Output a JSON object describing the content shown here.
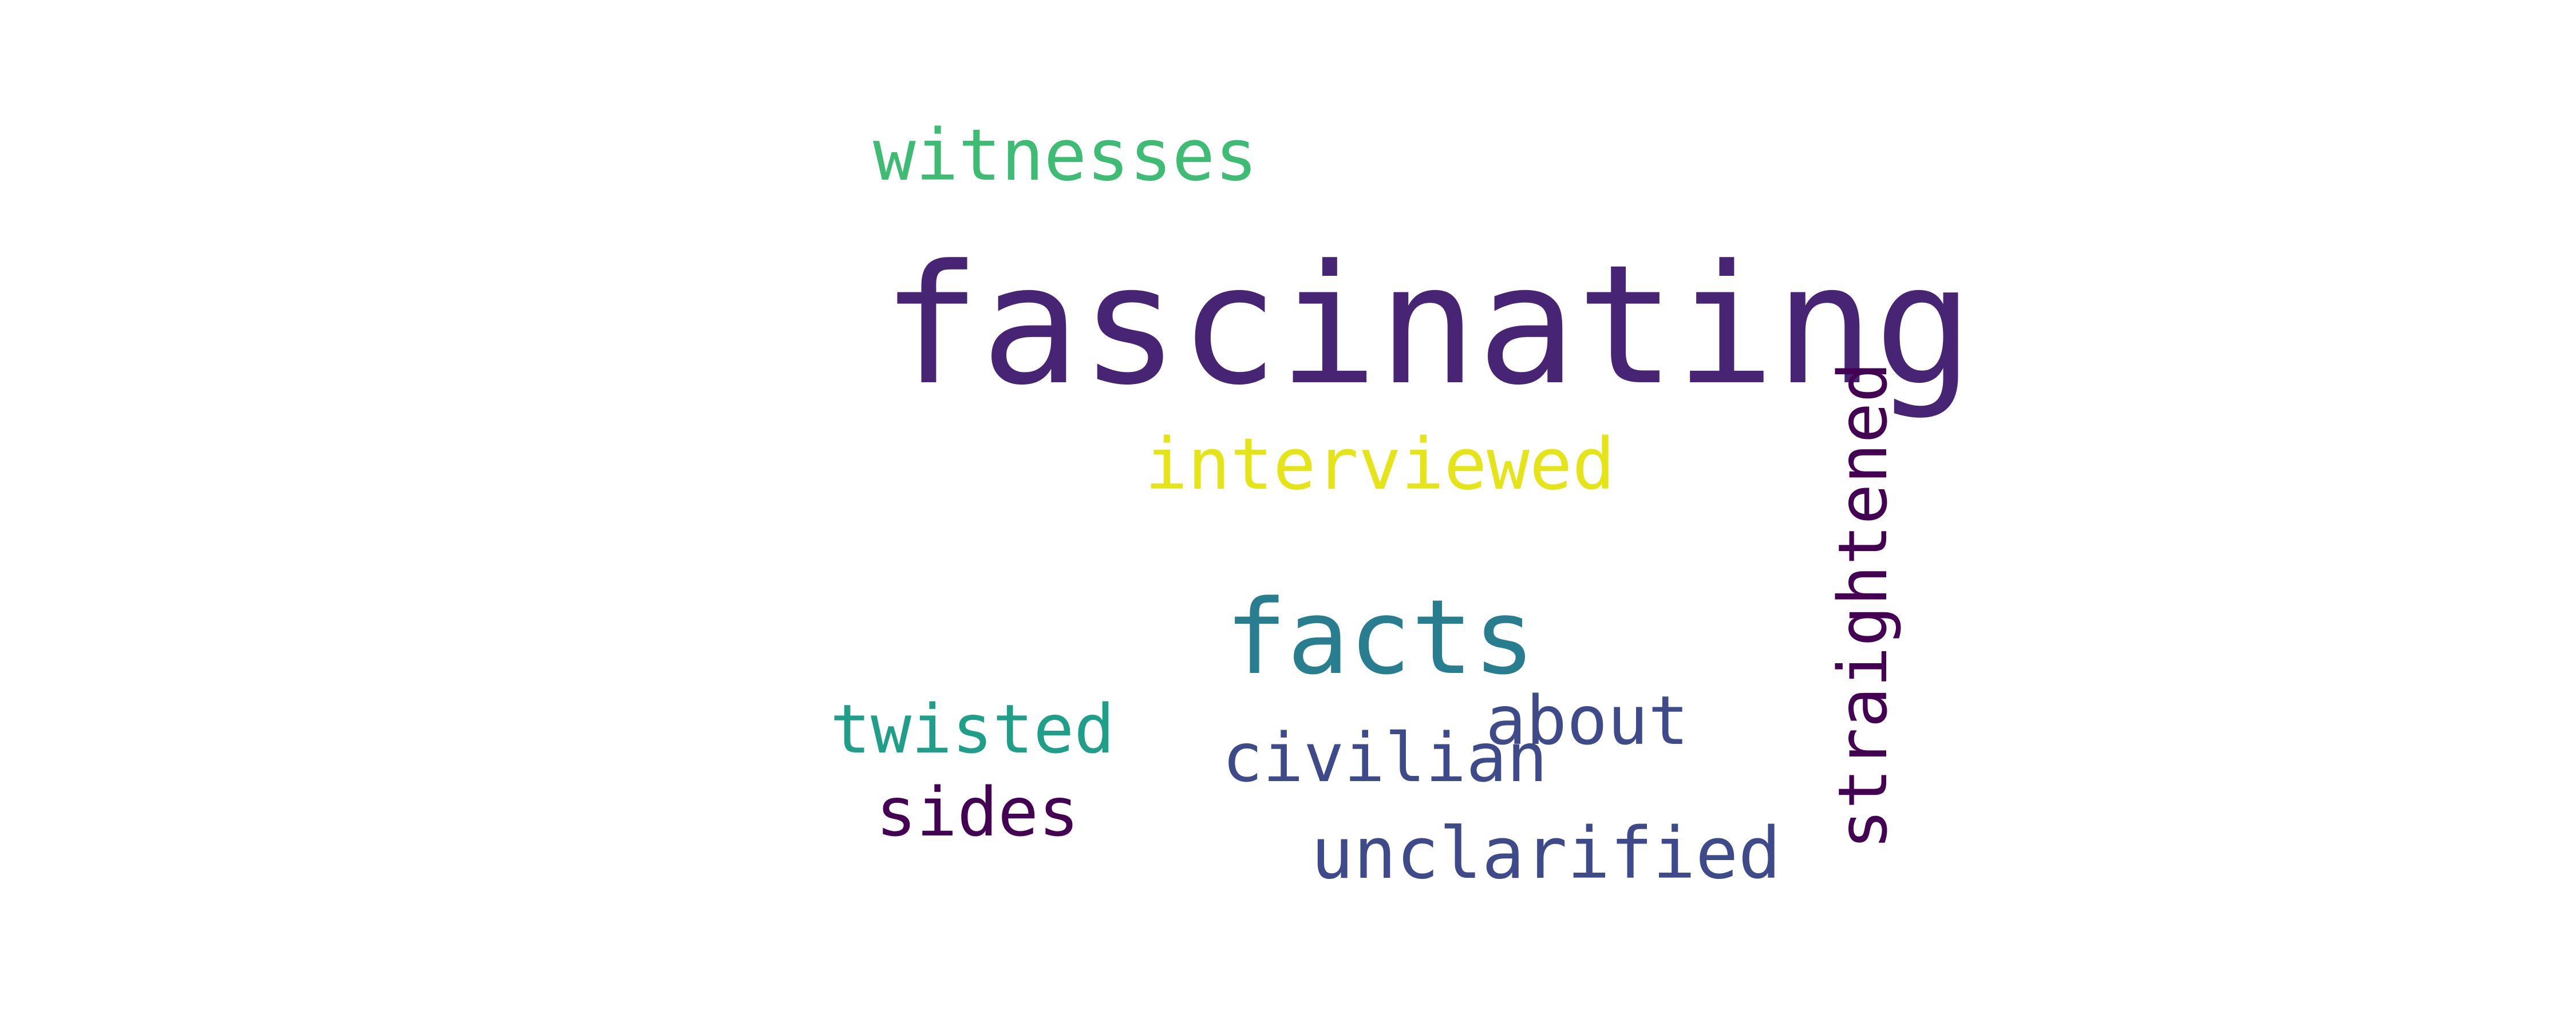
{
  "words": {
    "fascinating": {
      "text": "fascinating",
      "color": "#482475"
    },
    "straightened": {
      "text": "straightened",
      "color": "#440154"
    },
    "facts": {
      "text": "facts",
      "color": "#287d8e"
    },
    "witnesses": {
      "text": "witnesses",
      "color": "#3fbc73"
    },
    "interviewed": {
      "text": "interviewed",
      "color": "#e5e419"
    },
    "twisted": {
      "text": "twisted",
      "color": "#1f9e89"
    },
    "about": {
      "text": "about",
      "color": "#3e4a89"
    },
    "civilian": {
      "text": "civilian",
      "color": "#3e4a89"
    },
    "sides": {
      "text": "sides",
      "color": "#440154"
    },
    "unclarified": {
      "text": "unclarified",
      "color": "#3e4a89"
    }
  }
}
